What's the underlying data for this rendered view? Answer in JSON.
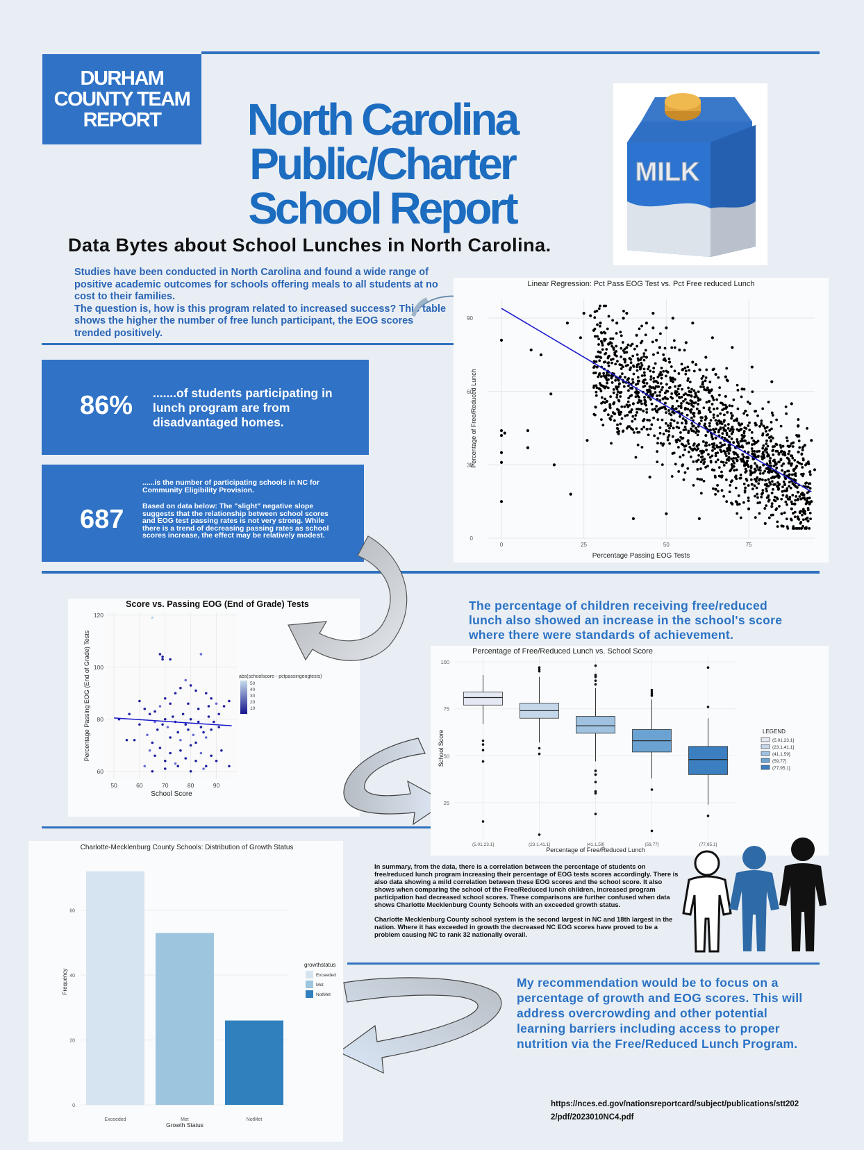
{
  "header": {
    "team_box": "DURHAM\nCOUNTY TEAM\nREPORT",
    "title": "North Carolina\nPublic/Charter\nSchool Report",
    "subtitle": "Data Bytes about School Lunches in North Carolina.",
    "milk_label": "MILK"
  },
  "intro": {
    "p1": "Studies have been conducted in North Carolina and found a wide range of positive academic outcomes for schools offering meals to all students at no cost to their families.",
    "p2": "The question is, how is this program related to increased success? This table shows the higher the number of free lunch participant, the EOG scores trended positively."
  },
  "stats": {
    "stat1_number": "86%",
    "stat1_text": ".......of students participating in lunch program are from disadvantaged homes.",
    "stat2_number": "687",
    "stat2_text1": "......is the number of participating schools in NC for Community Eligibility Provision.",
    "stat2_text2": "Based on data below: The \"slight\" negative slope suggests that the relationship between school scores and EOG test passing rates is not very strong. While there is a trend of decreasing passing rates as school scores increase, the effect may be relatively modest."
  },
  "box_heading": "The percentage of children receiving free/reduced lunch also showed an increase in the school's score where there were standards of achievement.",
  "summary": {
    "p1": "In summary, from the data, there is a correlation between the percentage of students on free/reduced lunch program increasing their percentage of EOG tests scores accordingly. There is also data showing a mild correlation between these EOG scores and the school score. It also shows when comparing the school of the Free/Reduced lunch children, increased program participation had decreased school scores. These comparisons are further confused when data shows Charlotte Mecklenburg County Schools with an exceeded growth status.",
    "p2": "Charlotte Mecklenburg County school system is the second largest in NC and 18th largest in the nation. Where it has exceeded in growth the decreased NC EOG scores have proved to be a problem causing NC to rank 32 nationally overall."
  },
  "recommendation": "My recommendation would be to focus on a percentage of growth and EOG scores. This will address overcrowding and other potential learning barriers including access to proper nutrition via the Free/Reduced Lunch Program.",
  "source_link": "https://nces.ed.gov/nationsreportcard/subject/publications/stt2022/pdf/2023010NC4.pdf",
  "colors": {
    "accent": "#2f72c6",
    "title_blue": "#1c6cc0",
    "line_blue": "#1a1acc"
  },
  "chart_data": [
    {
      "type": "scatter",
      "title": "Linear Regression: Pct Pass EOG Test vs. Pct Free reduced Lunch",
      "xlabel": "Percentage Passing EOG Tests",
      "ylabel": "Percentage of Free/Reduced Lunch",
      "xticks": [
        0,
        25,
        50,
        75
      ],
      "yticks": [
        0,
        30,
        60,
        90
      ],
      "xlim": [
        -4,
        95
      ],
      "ylim": [
        0,
        98
      ],
      "regression": {
        "x": [
          0,
          94
        ],
        "y": [
          94,
          19
        ]
      },
      "points": [
        [
          0,
          81
        ],
        [
          0,
          44
        ],
        [
          0,
          42
        ],
        [
          0,
          35
        ],
        [
          0,
          31
        ],
        [
          0,
          15
        ],
        [
          1,
          43
        ],
        [
          8,
          44
        ],
        [
          8,
          37
        ],
        [
          9,
          77
        ],
        [
          12,
          75
        ],
        [
          15,
          59
        ],
        [
          21,
          18
        ],
        [
          25,
          92
        ],
        [
          28,
          85
        ],
        [
          30,
          76
        ],
        [
          31,
          62
        ],
        [
          32,
          56
        ],
        [
          35,
          88
        ],
        [
          38,
          78
        ],
        [
          39,
          69
        ],
        [
          40,
          55
        ],
        [
          41,
          83
        ],
        [
          42,
          70
        ],
        [
          43,
          48
        ],
        [
          44,
          74
        ],
        [
          45,
          62
        ],
        [
          46,
          86
        ],
        [
          47,
          81
        ],
        [
          48,
          67
        ],
        [
          49,
          57
        ],
        [
          50,
          44
        ],
        [
          51,
          72
        ],
        [
          52,
          64
        ],
        [
          53,
          53
        ],
        [
          54,
          77
        ],
        [
          55,
          69
        ],
        [
          56,
          47
        ],
        [
          57,
          60
        ],
        [
          58,
          36
        ],
        [
          59,
          71
        ],
        [
          60,
          52
        ],
        [
          61,
          63
        ],
        [
          62,
          42
        ],
        [
          63,
          56
        ],
        [
          64,
          28
        ],
        [
          65,
          67
        ],
        [
          66,
          48
        ],
        [
          67,
          38
        ],
        [
          68,
          58
        ],
        [
          69,
          33
        ],
        [
          70,
          50
        ],
        [
          71,
          25
        ],
        [
          72,
          44
        ],
        [
          73,
          61
        ],
        [
          74,
          30
        ],
        [
          75,
          39
        ],
        [
          76,
          22
        ],
        [
          77,
          47
        ],
        [
          78,
          28
        ],
        [
          79,
          18
        ],
        [
          80,
          36
        ],
        [
          81,
          24
        ],
        [
          82,
          13
        ],
        [
          83,
          31
        ],
        [
          84,
          20
        ],
        [
          85,
          10
        ],
        [
          86,
          27
        ],
        [
          87,
          16
        ],
        [
          88,
          12
        ],
        [
          89,
          23
        ],
        [
          90,
          8
        ],
        [
          91,
          18
        ],
        [
          92,
          11
        ],
        [
          93,
          7
        ],
        [
          94,
          15
        ],
        [
          20,
          88
        ],
        [
          24,
          82
        ],
        [
          27,
          91
        ],
        [
          29,
          70
        ],
        [
          33,
          80
        ],
        [
          36,
          66
        ],
        [
          37,
          90
        ],
        [
          41,
          60
        ],
        [
          44,
          88
        ],
        [
          47,
          52
        ],
        [
          50,
          86
        ],
        [
          53,
          40
        ],
        [
          56,
          80
        ],
        [
          59,
          45
        ],
        [
          62,
          74
        ],
        [
          65,
          41
        ],
        [
          68,
          66
        ],
        [
          71,
          37
        ],
        [
          74,
          52
        ],
        [
          77,
          33
        ],
        [
          80,
          45
        ],
        [
          83,
          22
        ],
        [
          86,
          34
        ],
        [
          89,
          14
        ],
        [
          16,
          30
        ],
        [
          26,
          40
        ],
        [
          34,
          55
        ],
        [
          40,
          8
        ],
        [
          50,
          10
        ],
        [
          60,
          8
        ],
        [
          70,
          14
        ],
        [
          80,
          6
        ],
        [
          90,
          46
        ],
        [
          92,
          38
        ],
        [
          46,
          92
        ],
        [
          52,
          90
        ],
        [
          58,
          88
        ],
        [
          64,
          82
        ],
        [
          70,
          78
        ],
        [
          76,
          70
        ],
        [
          82,
          64
        ],
        [
          88,
          55
        ],
        [
          94,
          40
        ],
        [
          45,
          25
        ],
        [
          55,
          30
        ],
        [
          65,
          20
        ],
        [
          75,
          12
        ],
        [
          85,
          5
        ],
        [
          95,
          28
        ],
        [
          30,
          88
        ],
        [
          38,
          92
        ],
        [
          48,
          78
        ],
        [
          58,
          72
        ],
        [
          68,
          44
        ]
      ]
    },
    {
      "type": "scatter",
      "title": "Score vs. Passing EOG (End of Grade) Tests",
      "xlabel": "School Score",
      "ylabel": "Percentage Passing EOG (End of Grade) Tests",
      "xticks": [
        50,
        60,
        70,
        80,
        90
      ],
      "yticks": [
        60,
        80,
        100,
        120
      ],
      "xlim": [
        47,
        98
      ],
      "ylim": [
        57,
        121
      ],
      "legend_title": "abs(schoolscore - pctpassingeogtests)",
      "legend_ticks": [
        "50",
        "40",
        "30",
        "20",
        "10"
      ],
      "regression": {
        "x": [
          50,
          96
        ],
        "y": [
          80.5,
          77.5
        ]
      },
      "points": [
        [
          65,
          119
        ],
        [
          68,
          105
        ],
        [
          69,
          104
        ],
        [
          69,
          103
        ],
        [
          72,
          103
        ],
        [
          84,
          105
        ],
        [
          60,
          87
        ],
        [
          62,
          84
        ],
        [
          64,
          82
        ],
        [
          66,
          83
        ],
        [
          68,
          85
        ],
        [
          70,
          88
        ],
        [
          72,
          86
        ],
        [
          74,
          90
        ],
        [
          76,
          92
        ],
        [
          78,
          95
        ],
        [
          80,
          93
        ],
        [
          82,
          91
        ],
        [
          86,
          90
        ],
        [
          88,
          88
        ],
        [
          90,
          86
        ],
        [
          93,
          85
        ],
        [
          95,
          87
        ],
        [
          55,
          72
        ],
        [
          58,
          72
        ],
        [
          63,
          74
        ],
        [
          65,
          71
        ],
        [
          67,
          76
        ],
        [
          69,
          78
        ],
        [
          70,
          80
        ],
        [
          71,
          77
        ],
        [
          72,
          73
        ],
        [
          73,
          81
        ],
        [
          74,
          79
        ],
        [
          75,
          75
        ],
        [
          76,
          72
        ],
        [
          77,
          82
        ],
        [
          78,
          78
        ],
        [
          79,
          76
        ],
        [
          80,
          80
        ],
        [
          81,
          74
        ],
        [
          82,
          71
        ],
        [
          83,
          79
        ],
        [
          84,
          77
        ],
        [
          85,
          75
        ],
        [
          86,
          73
        ],
        [
          87,
          81
        ],
        [
          88,
          76
        ],
        [
          89,
          79
        ],
        [
          91,
          77
        ],
        [
          64,
          68
        ],
        [
          66,
          66
        ],
        [
          68,
          69
        ],
        [
          70,
          64
        ],
        [
          72,
          67
        ],
        [
          74,
          63
        ],
        [
          76,
          68
        ],
        [
          78,
          65
        ],
        [
          80,
          70
        ],
        [
          82,
          64
        ],
        [
          84,
          67
        ],
        [
          86,
          62
        ],
        [
          88,
          66
        ],
        [
          90,
          64
        ],
        [
          92,
          68
        ],
        [
          62,
          62
        ],
        [
          65,
          60
        ],
        [
          70,
          61
        ],
        [
          75,
          62
        ],
        [
          80,
          60
        ],
        [
          85,
          61
        ],
        [
          95,
          62
        ],
        [
          52,
          80
        ],
        [
          56,
          82
        ],
        [
          60,
          78
        ],
        [
          66,
          79
        ],
        [
          79,
          86
        ],
        [
          83,
          84
        ],
        [
          87,
          85
        ],
        [
          91,
          82
        ]
      ]
    },
    {
      "type": "box",
      "title": "Percentage of Free/Reduced Lunch vs. School Score",
      "xlabel": "Percentage of Free/Reduced Lunch",
      "ylabel": "School Score",
      "yticks": [
        25,
        50,
        75,
        100
      ],
      "ylim": [
        5,
        103
      ],
      "categories": [
        "(5.01,23.1]",
        "(23.1,41.1]",
        "(41.1,59]",
        "(59,77]",
        "(77,95.1]"
      ],
      "legend_title": "LEGEND",
      "boxes": [
        {
          "min": 67,
          "q1": 77,
          "median": 81,
          "q3": 84,
          "max": 93,
          "outliers": [
            58,
            56,
            53,
            47,
            15
          ]
        },
        {
          "min": 57,
          "q1": 70,
          "median": 74,
          "q3": 78,
          "max": 92,
          "outliers": [
            54,
            51,
            8,
            95,
            96,
            97
          ]
        },
        {
          "min": 47,
          "q1": 62,
          "median": 66,
          "q3": 71,
          "max": 86,
          "outliers": [
            42,
            40,
            36,
            31,
            30,
            19,
            88,
            90,
            92,
            93,
            98
          ]
        },
        {
          "min": 38,
          "q1": 52,
          "median": 58,
          "q3": 64,
          "max": 80,
          "outliers": [
            32,
            10,
            82,
            83,
            84,
            85
          ]
        },
        {
          "min": 24,
          "q1": 40,
          "median": 48,
          "q3": 55,
          "max": 70,
          "outliers": [
            18,
            76,
            97
          ]
        }
      ],
      "colors": [
        "#e4e8f2",
        "#c5d7eb",
        "#9ec2e0",
        "#6aa3d2",
        "#3b7fc0"
      ]
    },
    {
      "type": "bar",
      "title": "Charlotte-Mecklenburg County Schools: Distribution of Growth Status",
      "xlabel": "Growth Status",
      "ylabel": "Frequency",
      "categories": [
        "Exceeded",
        "Met",
        "NotMet"
      ],
      "values": [
        72,
        53,
        26
      ],
      "yticks": [
        0,
        20,
        40,
        60
      ],
      "ylim": [
        0,
        76
      ],
      "legend_title": "growthstatus",
      "colors": [
        "#d6e4f1",
        "#9ec5de",
        "#3180be"
      ]
    }
  ]
}
